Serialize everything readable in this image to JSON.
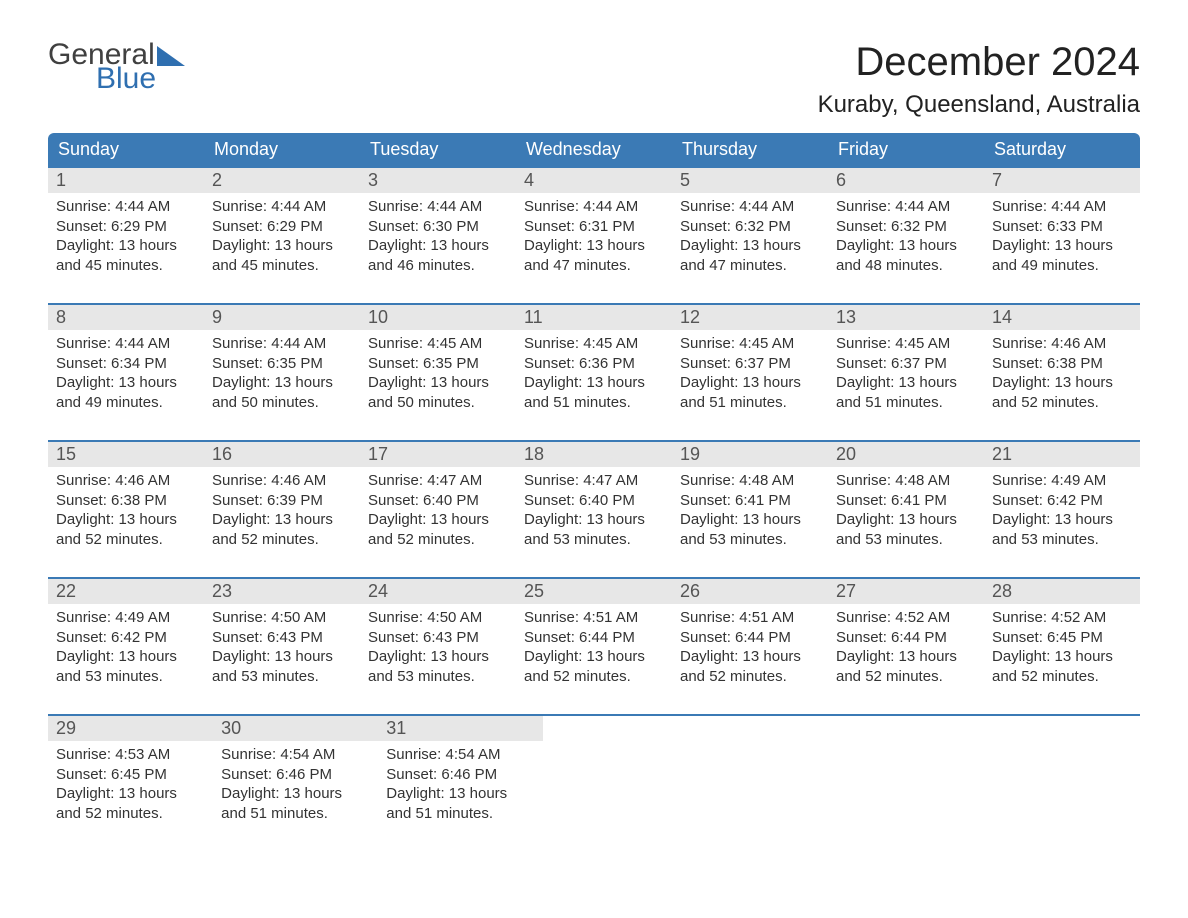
{
  "logo": {
    "textGeneral": "General",
    "textBlue": "Blue",
    "generalColor": "#404040",
    "blueColor": "#2f6fb0"
  },
  "title": "December 2024",
  "subtitle": "Kuraby, Queensland, Australia",
  "colors": {
    "headerBg": "#3b7ab5",
    "headerText": "#ffffff",
    "dayNumBg": "#e7e7e7",
    "ruleColor": "#3b7ab5",
    "bodyText": "#333333",
    "background": "#ffffff"
  },
  "typography": {
    "titleSize": 40,
    "subtitleSize": 24,
    "dayHeaderSize": 18,
    "bodySize": 15
  },
  "dayHeaders": [
    "Sunday",
    "Monday",
    "Tuesday",
    "Wednesday",
    "Thursday",
    "Friday",
    "Saturday"
  ],
  "weeks": [
    [
      {
        "n": "1",
        "sunrise": "Sunrise: 4:44 AM",
        "sunset": "Sunset: 6:29 PM",
        "d1": "Daylight: 13 hours",
        "d2": "and 45 minutes."
      },
      {
        "n": "2",
        "sunrise": "Sunrise: 4:44 AM",
        "sunset": "Sunset: 6:29 PM",
        "d1": "Daylight: 13 hours",
        "d2": "and 45 minutes."
      },
      {
        "n": "3",
        "sunrise": "Sunrise: 4:44 AM",
        "sunset": "Sunset: 6:30 PM",
        "d1": "Daylight: 13 hours",
        "d2": "and 46 minutes."
      },
      {
        "n": "4",
        "sunrise": "Sunrise: 4:44 AM",
        "sunset": "Sunset: 6:31 PM",
        "d1": "Daylight: 13 hours",
        "d2": "and 47 minutes."
      },
      {
        "n": "5",
        "sunrise": "Sunrise: 4:44 AM",
        "sunset": "Sunset: 6:32 PM",
        "d1": "Daylight: 13 hours",
        "d2": "and 47 minutes."
      },
      {
        "n": "6",
        "sunrise": "Sunrise: 4:44 AM",
        "sunset": "Sunset: 6:32 PM",
        "d1": "Daylight: 13 hours",
        "d2": "and 48 minutes."
      },
      {
        "n": "7",
        "sunrise": "Sunrise: 4:44 AM",
        "sunset": "Sunset: 6:33 PM",
        "d1": "Daylight: 13 hours",
        "d2": "and 49 minutes."
      }
    ],
    [
      {
        "n": "8",
        "sunrise": "Sunrise: 4:44 AM",
        "sunset": "Sunset: 6:34 PM",
        "d1": "Daylight: 13 hours",
        "d2": "and 49 minutes."
      },
      {
        "n": "9",
        "sunrise": "Sunrise: 4:44 AM",
        "sunset": "Sunset: 6:35 PM",
        "d1": "Daylight: 13 hours",
        "d2": "and 50 minutes."
      },
      {
        "n": "10",
        "sunrise": "Sunrise: 4:45 AM",
        "sunset": "Sunset: 6:35 PM",
        "d1": "Daylight: 13 hours",
        "d2": "and 50 minutes."
      },
      {
        "n": "11",
        "sunrise": "Sunrise: 4:45 AM",
        "sunset": "Sunset: 6:36 PM",
        "d1": "Daylight: 13 hours",
        "d2": "and 51 minutes."
      },
      {
        "n": "12",
        "sunrise": "Sunrise: 4:45 AM",
        "sunset": "Sunset: 6:37 PM",
        "d1": "Daylight: 13 hours",
        "d2": "and 51 minutes."
      },
      {
        "n": "13",
        "sunrise": "Sunrise: 4:45 AM",
        "sunset": "Sunset: 6:37 PM",
        "d1": "Daylight: 13 hours",
        "d2": "and 51 minutes."
      },
      {
        "n": "14",
        "sunrise": "Sunrise: 4:46 AM",
        "sunset": "Sunset: 6:38 PM",
        "d1": "Daylight: 13 hours",
        "d2": "and 52 minutes."
      }
    ],
    [
      {
        "n": "15",
        "sunrise": "Sunrise: 4:46 AM",
        "sunset": "Sunset: 6:38 PM",
        "d1": "Daylight: 13 hours",
        "d2": "and 52 minutes."
      },
      {
        "n": "16",
        "sunrise": "Sunrise: 4:46 AM",
        "sunset": "Sunset: 6:39 PM",
        "d1": "Daylight: 13 hours",
        "d2": "and 52 minutes."
      },
      {
        "n": "17",
        "sunrise": "Sunrise: 4:47 AM",
        "sunset": "Sunset: 6:40 PM",
        "d1": "Daylight: 13 hours",
        "d2": "and 52 minutes."
      },
      {
        "n": "18",
        "sunrise": "Sunrise: 4:47 AM",
        "sunset": "Sunset: 6:40 PM",
        "d1": "Daylight: 13 hours",
        "d2": "and 53 minutes."
      },
      {
        "n": "19",
        "sunrise": "Sunrise: 4:48 AM",
        "sunset": "Sunset: 6:41 PM",
        "d1": "Daylight: 13 hours",
        "d2": "and 53 minutes."
      },
      {
        "n": "20",
        "sunrise": "Sunrise: 4:48 AM",
        "sunset": "Sunset: 6:41 PM",
        "d1": "Daylight: 13 hours",
        "d2": "and 53 minutes."
      },
      {
        "n": "21",
        "sunrise": "Sunrise: 4:49 AM",
        "sunset": "Sunset: 6:42 PM",
        "d1": "Daylight: 13 hours",
        "d2": "and 53 minutes."
      }
    ],
    [
      {
        "n": "22",
        "sunrise": "Sunrise: 4:49 AM",
        "sunset": "Sunset: 6:42 PM",
        "d1": "Daylight: 13 hours",
        "d2": "and 53 minutes."
      },
      {
        "n": "23",
        "sunrise": "Sunrise: 4:50 AM",
        "sunset": "Sunset: 6:43 PM",
        "d1": "Daylight: 13 hours",
        "d2": "and 53 minutes."
      },
      {
        "n": "24",
        "sunrise": "Sunrise: 4:50 AM",
        "sunset": "Sunset: 6:43 PM",
        "d1": "Daylight: 13 hours",
        "d2": "and 53 minutes."
      },
      {
        "n": "25",
        "sunrise": "Sunrise: 4:51 AM",
        "sunset": "Sunset: 6:44 PM",
        "d1": "Daylight: 13 hours",
        "d2": "and 52 minutes."
      },
      {
        "n": "26",
        "sunrise": "Sunrise: 4:51 AM",
        "sunset": "Sunset: 6:44 PM",
        "d1": "Daylight: 13 hours",
        "d2": "and 52 minutes."
      },
      {
        "n": "27",
        "sunrise": "Sunrise: 4:52 AM",
        "sunset": "Sunset: 6:44 PM",
        "d1": "Daylight: 13 hours",
        "d2": "and 52 minutes."
      },
      {
        "n": "28",
        "sunrise": "Sunrise: 4:52 AM",
        "sunset": "Sunset: 6:45 PM",
        "d1": "Daylight: 13 hours",
        "d2": "and 52 minutes."
      }
    ],
    [
      {
        "n": "29",
        "sunrise": "Sunrise: 4:53 AM",
        "sunset": "Sunset: 6:45 PM",
        "d1": "Daylight: 13 hours",
        "d2": "and 52 minutes."
      },
      {
        "n": "30",
        "sunrise": "Sunrise: 4:54 AM",
        "sunset": "Sunset: 6:46 PM",
        "d1": "Daylight: 13 hours",
        "d2": "and 51 minutes."
      },
      {
        "n": "31",
        "sunrise": "Sunrise: 4:54 AM",
        "sunset": "Sunset: 6:46 PM",
        "d1": "Daylight: 13 hours",
        "d2": "and 51 minutes."
      },
      null,
      null,
      null,
      null
    ]
  ]
}
